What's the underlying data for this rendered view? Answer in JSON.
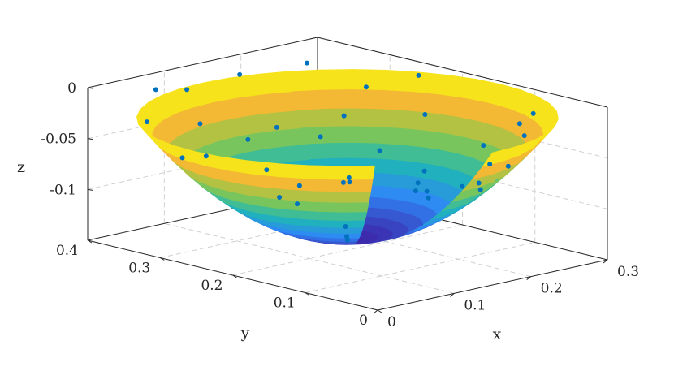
{
  "chart_data": {
    "type": "surface3d",
    "title": "",
    "xlabel": "x",
    "ylabel": "y",
    "zlabel": "z",
    "xlim": [
      0,
      0.3
    ],
    "ylim": [
      0,
      0.4
    ],
    "zlim": [
      -0.15,
      0
    ],
    "xticks": [
      "0",
      "0.1",
      "0.2",
      "0.3"
    ],
    "yticks": [
      "0",
      "0.1",
      "0.2",
      "0.3",
      "0.4"
    ],
    "zticks": [
      "0",
      "-0.05",
      "-0.1"
    ],
    "grid": true,
    "colormap": [
      "#3e26a8",
      "#2e87f7",
      "#1fb8b3",
      "#8cc84b",
      "#f4b834",
      "#f9fb0e"
    ],
    "marker_color": "#0072bd",
    "surface": {
      "description": "paraboloid bowl",
      "center": [
        0.15,
        0.2
      ],
      "max_radius": 0.2,
      "rim_z": -0.02,
      "min_z": -0.14,
      "cut_opening": "faces viewer"
    },
    "points": [
      {
        "x": 0.02,
        "y": 0.1,
        "z": 0.0
      },
      {
        "x": 0.05,
        "y": 0.05,
        "z": -0.01
      },
      {
        "x": 0.08,
        "y": 0.02,
        "z": -0.03
      },
      {
        "x": 0.12,
        "y": 0.01,
        "z": -0.05
      },
      {
        "x": 0.18,
        "y": 0.01,
        "z": -0.04
      },
      {
        "x": 0.22,
        "y": 0.03,
        "z": -0.02
      },
      {
        "x": 0.26,
        "y": 0.06,
        "z": -0.01
      },
      {
        "x": 0.28,
        "y": 0.1,
        "z": -0.03
      },
      {
        "x": 0.28,
        "y": 0.15,
        "z": -0.06
      },
      {
        "x": 0.27,
        "y": 0.22,
        "z": -0.04
      },
      {
        "x": 0.25,
        "y": 0.28,
        "z": -0.02
      },
      {
        "x": 0.22,
        "y": 0.33,
        "z": 0.0
      },
      {
        "x": 0.17,
        "y": 0.37,
        "z": -0.01
      },
      {
        "x": 0.12,
        "y": 0.39,
        "z": -0.02
      },
      {
        "x": 0.07,
        "y": 0.38,
        "z": -0.01
      },
      {
        "x": 0.03,
        "y": 0.35,
        "z": -0.03
      },
      {
        "x": 0.01,
        "y": 0.28,
        "z": -0.05
      },
      {
        "x": 0.02,
        "y": 0.2,
        "z": -0.02
      },
      {
        "x": 0.04,
        "y": 0.15,
        "z": -0.06
      },
      {
        "x": 0.15,
        "y": 0.2,
        "z": -0.14
      },
      {
        "x": 0.1,
        "y": 0.15,
        "z": -0.11
      },
      {
        "x": 0.2,
        "y": 0.25,
        "z": -0.1
      },
      {
        "x": 0.18,
        "y": 0.12,
        "z": -0.09
      },
      {
        "x": 0.12,
        "y": 0.28,
        "z": -0.08
      },
      {
        "x": 0.08,
        "y": 0.22,
        "z": -0.09
      },
      {
        "x": 0.22,
        "y": 0.18,
        "z": -0.1
      },
      {
        "x": 0.14,
        "y": 0.08,
        "z": -0.07
      },
      {
        "x": 0.24,
        "y": 0.3,
        "z": -0.05
      },
      {
        "x": 0.06,
        "y": 0.3,
        "z": -0.06
      },
      {
        "x": 0.19,
        "y": 0.34,
        "z": -0.06
      },
      {
        "x": 0.1,
        "y": 0.05,
        "z": -0.05
      },
      {
        "x": 0.26,
        "y": 0.12,
        "z": -0.07
      },
      {
        "x": 0.16,
        "y": 0.28,
        "z": -0.12
      },
      {
        "x": 0.13,
        "y": 0.18,
        "z": -0.13
      },
      {
        "x": 0.21,
        "y": 0.08,
        "z": -0.08
      },
      {
        "x": 0.05,
        "y": 0.1,
        "z": -0.05
      },
      {
        "x": 0.09,
        "y": 0.34,
        "z": -0.04
      },
      {
        "x": 0.29,
        "y": 0.25,
        "z": -0.01
      },
      {
        "x": 0.01,
        "y": 0.05,
        "z": -0.03
      },
      {
        "x": 0.17,
        "y": 0.04,
        "z": -0.06
      }
    ]
  }
}
